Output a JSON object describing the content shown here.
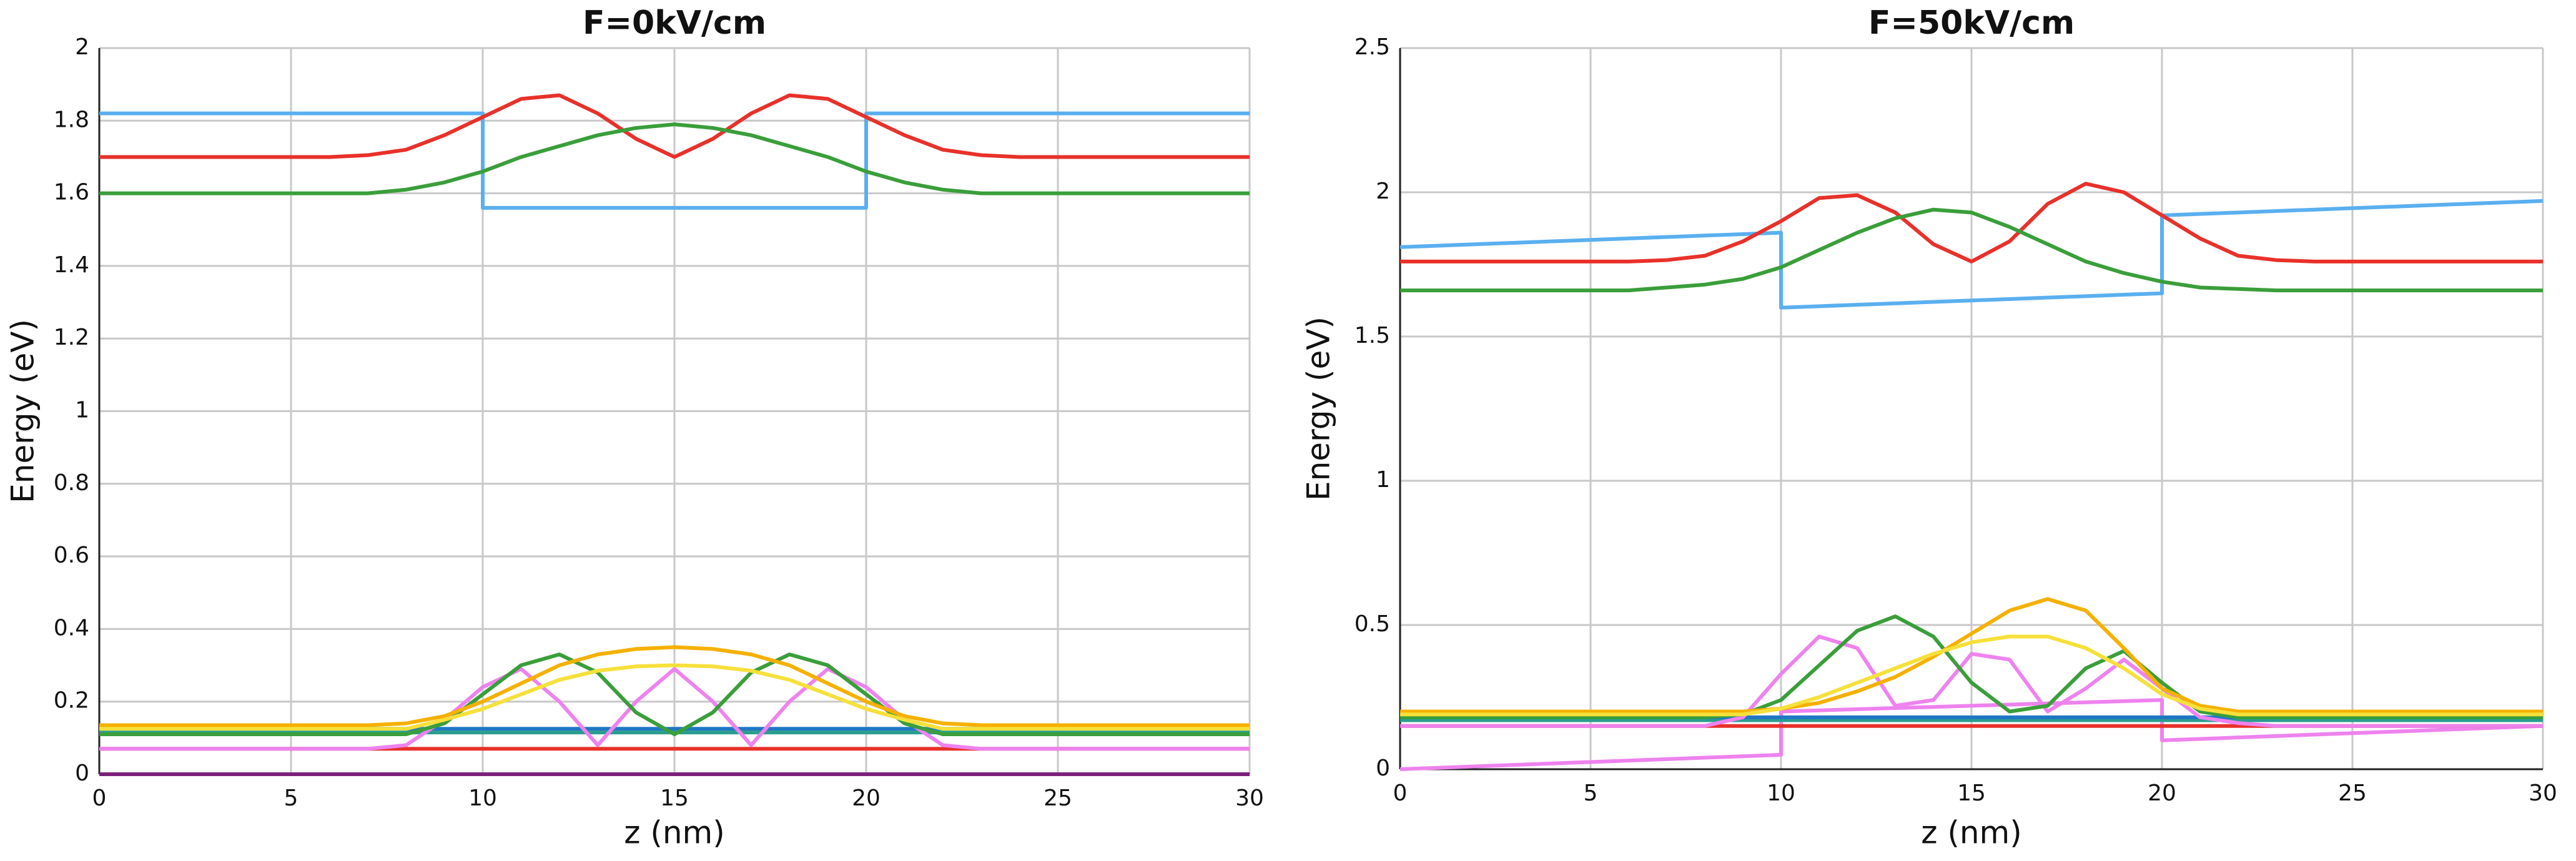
{
  "chart_data": [
    {
      "type": "line",
      "title": "F=0kV/cm",
      "x_label": "z (nm)",
      "y_label": "Energy (eV)",
      "xlim": [
        0,
        30
      ],
      "xticks": [
        0,
        5,
        10,
        15,
        20,
        25,
        30
      ],
      "ylim": [
        0,
        2
      ],
      "yticks": [
        0,
        0.2,
        0.4,
        0.6,
        0.8,
        1,
        1.2,
        1.4,
        1.6,
        1.8,
        2
      ],
      "grid": true,
      "x": [
        0,
        1,
        2,
        3,
        4,
        5,
        6,
        7,
        8,
        9,
        10,
        10,
        11,
        12,
        13,
        14,
        15,
        16,
        17,
        18,
        19,
        20,
        20,
        21,
        22,
        23,
        24,
        25,
        26,
        27,
        28,
        29,
        30
      ],
      "series": [
        {
          "color": "#5aafef",
          "values": [
            1.82,
            1.82,
            1.82,
            1.82,
            1.82,
            1.82,
            1.82,
            1.82,
            1.82,
            1.82,
            1.82,
            1.56,
            1.56,
            1.56,
            1.56,
            1.56,
            1.56,
            1.56,
            1.56,
            1.56,
            1.56,
            1.56,
            1.82,
            1.82,
            1.82,
            1.82,
            1.82,
            1.82,
            1.82,
            1.82,
            1.82,
            1.82,
            1.82
          ]
        },
        {
          "color": "#e8312a",
          "values": [
            1.7,
            1.7,
            1.7,
            1.7,
            1.7,
            1.7,
            1.7,
            1.705,
            1.72,
            1.76,
            1.81,
            1.81,
            1.86,
            1.87,
            1.82,
            1.75,
            1.7,
            1.75,
            1.82,
            1.87,
            1.86,
            1.81,
            1.81,
            1.76,
            1.72,
            1.705,
            1.7,
            1.7,
            1.7,
            1.7,
            1.7,
            1.7,
            1.7
          ]
        },
        {
          "color": "#3a9e3a",
          "values": [
            1.6,
            1.6,
            1.6,
            1.6,
            1.6,
            1.6,
            1.6,
            1.6,
            1.61,
            1.63,
            1.66,
            1.66,
            1.7,
            1.73,
            1.76,
            1.78,
            1.79,
            1.78,
            1.76,
            1.73,
            1.7,
            1.66,
            1.66,
            1.63,
            1.61,
            1.6,
            1.6,
            1.6,
            1.6,
            1.6,
            1.6,
            1.6,
            1.6
          ]
        },
        {
          "color": "#7b1f7b",
          "values": [
            0,
            0,
            0,
            0,
            0,
            0,
            0,
            0,
            0,
            0,
            0,
            0,
            0,
            0,
            0,
            0,
            0,
            0,
            0,
            0,
            0,
            0,
            0,
            0,
            0,
            0,
            0,
            0,
            0,
            0,
            0,
            0,
            0
          ]
        },
        {
          "color": "#e8312a",
          "values": [
            0.07,
            0.07,
            0.07,
            0.07,
            0.07,
            0.07,
            0.07,
            0.07,
            0.07,
            0.07,
            0.07,
            0.07,
            0.07,
            0.07,
            0.07,
            0.07,
            0.07,
            0.07,
            0.07,
            0.07,
            0.07,
            0.07,
            0.07,
            0.07,
            0.07,
            0.07,
            0.07,
            0.07,
            0.07,
            0.07,
            0.07,
            0.07,
            0.07
          ]
        },
        {
          "color": "#1f77c4",
          "values": [
            0.125,
            0.125,
            0.125,
            0.125,
            0.125,
            0.125,
            0.125,
            0.125,
            0.125,
            0.125,
            0.125,
            0.125,
            0.125,
            0.125,
            0.125,
            0.125,
            0.125,
            0.125,
            0.125,
            0.125,
            0.125,
            0.125,
            0.125,
            0.125,
            0.125,
            0.125,
            0.125,
            0.125,
            0.125,
            0.125,
            0.125,
            0.125,
            0.125
          ]
        },
        {
          "color": "#2a9d8f",
          "values": [
            0.115,
            0.115,
            0.115,
            0.115,
            0.115,
            0.115,
            0.115,
            0.115,
            0.115,
            0.115,
            0.115,
            0.115,
            0.115,
            0.115,
            0.115,
            0.115,
            0.115,
            0.115,
            0.115,
            0.115,
            0.115,
            0.115,
            0.115,
            0.115,
            0.115,
            0.115,
            0.115,
            0.115,
            0.115,
            0.115,
            0.115,
            0.115,
            0.115
          ]
        },
        {
          "color": "#ee82ee",
          "values": [
            0.07,
            0.07,
            0.07,
            0.07,
            0.07,
            0.07,
            0.07,
            0.07,
            0.08,
            0.15,
            0.24,
            0.24,
            0.29,
            0.2,
            0.08,
            0.2,
            0.29,
            0.2,
            0.08,
            0.2,
            0.29,
            0.24,
            0.24,
            0.15,
            0.08,
            0.07,
            0.07,
            0.07,
            0.07,
            0.07,
            0.07,
            0.07,
            0.07
          ]
        },
        {
          "color": "#3a9e3a",
          "values": [
            0.11,
            0.11,
            0.11,
            0.11,
            0.11,
            0.11,
            0.11,
            0.11,
            0.11,
            0.14,
            0.22,
            0.22,
            0.3,
            0.33,
            0.28,
            0.17,
            0.11,
            0.17,
            0.28,
            0.33,
            0.3,
            0.22,
            0.22,
            0.14,
            0.11,
            0.11,
            0.11,
            0.11,
            0.11,
            0.11,
            0.11,
            0.11,
            0.11
          ]
        },
        {
          "color": "#f5b000",
          "values": [
            0.135,
            0.135,
            0.135,
            0.135,
            0.135,
            0.135,
            0.135,
            0.135,
            0.14,
            0.16,
            0.2,
            0.2,
            0.25,
            0.3,
            0.33,
            0.345,
            0.35,
            0.345,
            0.33,
            0.3,
            0.25,
            0.2,
            0.2,
            0.16,
            0.14,
            0.135,
            0.135,
            0.135,
            0.135,
            0.135,
            0.135,
            0.135,
            0.135
          ]
        },
        {
          "color": "#f6e03a",
          "values": [
            0.125,
            0.125,
            0.125,
            0.125,
            0.125,
            0.125,
            0.125,
            0.125,
            0.125,
            0.15,
            0.18,
            0.18,
            0.22,
            0.26,
            0.285,
            0.297,
            0.3,
            0.297,
            0.285,
            0.26,
            0.22,
            0.18,
            0.18,
            0.15,
            0.125,
            0.125,
            0.125,
            0.125,
            0.125,
            0.125,
            0.125,
            0.125,
            0.125
          ]
        }
      ]
    },
    {
      "type": "line",
      "title": "F=50kV/cm",
      "x_label": "z (nm)",
      "y_label": "Energy (eV)",
      "xlim": [
        0,
        30
      ],
      "xticks": [
        0,
        5,
        10,
        15,
        20,
        25,
        30
      ],
      "ylim": [
        0,
        2.5
      ],
      "yticks": [
        0,
        0.5,
        1,
        1.5,
        2,
        2.5
      ],
      "grid": true,
      "x": [
        0,
        1,
        2,
        3,
        4,
        5,
        6,
        7,
        8,
        9,
        10,
        10,
        11,
        12,
        13,
        14,
        15,
        16,
        17,
        18,
        19,
        20,
        20,
        21,
        22,
        23,
        24,
        25,
        26,
        27,
        28,
        29,
        30
      ],
      "series": [
        {
          "color": "#5aafef",
          "values": [
            1.81,
            1.815,
            1.82,
            1.825,
            1.83,
            1.835,
            1.84,
            1.845,
            1.85,
            1.855,
            1.86,
            1.6,
            1.605,
            1.61,
            1.615,
            1.62,
            1.625,
            1.63,
            1.635,
            1.64,
            1.645,
            1.65,
            1.92,
            1.925,
            1.93,
            1.935,
            1.94,
            1.945,
            1.95,
            1.955,
            1.96,
            1.965,
            1.97
          ]
        },
        {
          "color": "#e8312a",
          "values": [
            1.76,
            1.76,
            1.76,
            1.76,
            1.76,
            1.76,
            1.76,
            1.765,
            1.78,
            1.83,
            1.9,
            1.9,
            1.98,
            1.99,
            1.93,
            1.82,
            1.76,
            1.83,
            1.96,
            2.03,
            2.0,
            1.92,
            1.92,
            1.84,
            1.78,
            1.765,
            1.76,
            1.76,
            1.76,
            1.76,
            1.76,
            1.76,
            1.76
          ]
        },
        {
          "color": "#3a9e3a",
          "values": [
            1.66,
            1.66,
            1.66,
            1.66,
            1.66,
            1.66,
            1.66,
            1.67,
            1.68,
            1.7,
            1.74,
            1.74,
            1.8,
            1.86,
            1.91,
            1.94,
            1.93,
            1.88,
            1.82,
            1.76,
            1.72,
            1.69,
            1.69,
            1.67,
            1.665,
            1.66,
            1.66,
            1.66,
            1.66,
            1.66,
            1.66,
            1.66,
            1.66
          ]
        },
        {
          "color": "#ee82ee",
          "values": [
            0,
            0.005,
            0.01,
            0.015,
            0.02,
            0.025,
            0.03,
            0.035,
            0.04,
            0.045,
            0.05,
            0.2,
            0.204,
            0.208,
            0.212,
            0.216,
            0.22,
            0.224,
            0.228,
            0.232,
            0.236,
            0.24,
            0.1,
            0.105,
            0.11,
            0.115,
            0.12,
            0.125,
            0.13,
            0.135,
            0.14,
            0.145,
            0.15
          ]
        },
        {
          "color": "#e8312a",
          "values": [
            0.15,
            0.15,
            0.15,
            0.15,
            0.15,
            0.15,
            0.15,
            0.15,
            0.15,
            0.15,
            0.15,
            0.15,
            0.15,
            0.15,
            0.15,
            0.15,
            0.15,
            0.15,
            0.15,
            0.15,
            0.15,
            0.15,
            0.15,
            0.15,
            0.15,
            0.15,
            0.15,
            0.15,
            0.15,
            0.15,
            0.15,
            0.15,
            0.15
          ]
        },
        {
          "color": "#2a9d8f",
          "values": [
            0.17,
            0.17,
            0.17,
            0.17,
            0.17,
            0.17,
            0.17,
            0.17,
            0.17,
            0.17,
            0.17,
            0.17,
            0.17,
            0.17,
            0.17,
            0.17,
            0.17,
            0.17,
            0.17,
            0.17,
            0.17,
            0.17,
            0.17,
            0.17,
            0.17,
            0.17,
            0.17,
            0.17,
            0.17,
            0.17,
            0.17,
            0.17,
            0.17
          ]
        },
        {
          "color": "#1f77c4",
          "values": [
            0.18,
            0.18,
            0.18,
            0.18,
            0.18,
            0.18,
            0.18,
            0.18,
            0.18,
            0.18,
            0.18,
            0.18,
            0.18,
            0.18,
            0.18,
            0.18,
            0.18,
            0.18,
            0.18,
            0.18,
            0.18,
            0.18,
            0.18,
            0.18,
            0.18,
            0.18,
            0.18,
            0.18,
            0.18,
            0.18,
            0.18,
            0.18,
            0.18
          ]
        },
        {
          "color": "#ee82ee",
          "values": [
            0.15,
            0.15,
            0.15,
            0.15,
            0.15,
            0.15,
            0.15,
            0.15,
            0.15,
            0.18,
            0.33,
            0.33,
            0.46,
            0.42,
            0.22,
            0.24,
            0.4,
            0.38,
            0.2,
            0.28,
            0.38,
            0.28,
            0.28,
            0.18,
            0.16,
            0.15,
            0.15,
            0.15,
            0.15,
            0.15,
            0.15,
            0.15,
            0.15
          ]
        },
        {
          "color": "#3a9e3a",
          "values": [
            0.18,
            0.18,
            0.18,
            0.18,
            0.18,
            0.18,
            0.18,
            0.18,
            0.18,
            0.19,
            0.24,
            0.24,
            0.36,
            0.48,
            0.53,
            0.46,
            0.3,
            0.2,
            0.22,
            0.35,
            0.41,
            0.3,
            0.3,
            0.2,
            0.18,
            0.18,
            0.18,
            0.18,
            0.18,
            0.18,
            0.18,
            0.18,
            0.18
          ]
        },
        {
          "color": "#f5b000",
          "values": [
            0.2,
            0.2,
            0.2,
            0.2,
            0.2,
            0.2,
            0.2,
            0.2,
            0.2,
            0.2,
            0.21,
            0.21,
            0.23,
            0.27,
            0.32,
            0.39,
            0.47,
            0.55,
            0.59,
            0.55,
            0.42,
            0.28,
            0.28,
            0.22,
            0.2,
            0.2,
            0.2,
            0.2,
            0.2,
            0.2,
            0.2,
            0.2,
            0.2
          ]
        },
        {
          "color": "#f6e03a",
          "values": [
            0.19,
            0.19,
            0.19,
            0.19,
            0.19,
            0.19,
            0.19,
            0.19,
            0.19,
            0.19,
            0.21,
            0.21,
            0.25,
            0.3,
            0.35,
            0.4,
            0.44,
            0.46,
            0.46,
            0.42,
            0.35,
            0.26,
            0.26,
            0.21,
            0.19,
            0.19,
            0.19,
            0.19,
            0.19,
            0.19,
            0.19,
            0.19,
            0.19
          ]
        }
      ]
    }
  ]
}
